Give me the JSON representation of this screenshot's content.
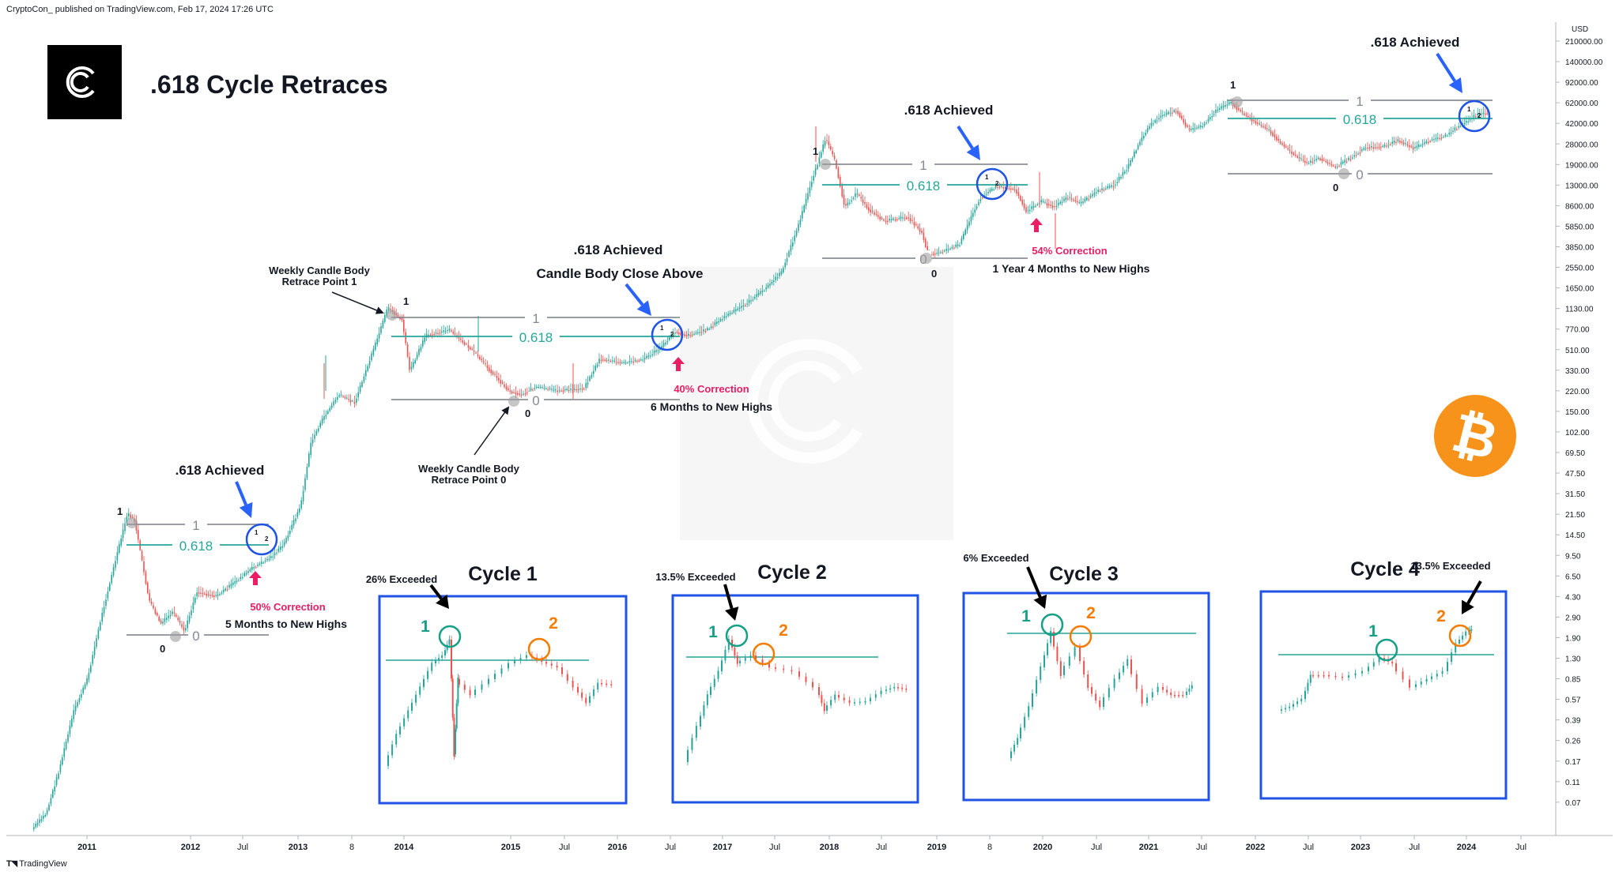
{
  "header": {
    "published_line": "CryptoCon_ published on TradingView.com, Feb 17, 2024 17:26 UTC"
  },
  "footer": {
    "brand": "TradingView",
    "brand_icon": "tradingview-logo-icon"
  },
  "title": ".618 Cycle Retraces",
  "brand": {
    "logo_icon": "cryptocon-logo-icon",
    "bitcoin_icon": "bitcoin-icon",
    "bitcoin_color": "#F7931A"
  },
  "colors": {
    "up_candle": "#26A69A",
    "down_candle": "#EF5350",
    "fib_line": "#26A69A",
    "fib_label": "#26A69A",
    "level_line": "#787B86",
    "circle_blue": "#1E53E5",
    "arrow_blue": "#2962FF",
    "correction_red": "#E91E63",
    "cycle_box": "#1E53E5",
    "circle_teal": "#16A085",
    "circle_orange": "#F57C00"
  },
  "chart_data": {
    "type": "candlestick",
    "title": ".618 Cycle Retraces",
    "y_axis": {
      "unit": "USD",
      "scale": "log",
      "ticks": [
        "210000.00",
        "140000.00",
        "92000.00",
        "62000.00",
        "42000.00",
        "28000.00",
        "19000.00",
        "13000.00",
        "8600.00",
        "5850.00",
        "3850.00",
        "2550.00",
        "1650.00",
        "1130.00",
        "770.00",
        "510.00",
        "330.00",
        "220.00",
        "150.00",
        "102.00",
        "69.50",
        "47.50",
        "31.50",
        "21.50",
        "14.50",
        "9.50",
        "6.50",
        "4.30",
        "2.90",
        "1.90",
        "1.30",
        "0.85",
        "0.57",
        "0.39",
        "0.26",
        "0.17",
        "0.11",
        "0.07"
      ]
    },
    "x_axis": {
      "ticks": [
        {
          "label": "2011",
          "bold": true
        },
        {
          "label": "2012",
          "bold": true
        },
        {
          "label": "Jul",
          "bold": false
        },
        {
          "label": "2013",
          "bold": true
        },
        {
          "label": "8",
          "bold": false
        },
        {
          "label": "2014",
          "bold": true
        },
        {
          "label": "2015",
          "bold": true
        },
        {
          "label": "Jul",
          "bold": false
        },
        {
          "label": "2016",
          "bold": true
        },
        {
          "label": "Jul",
          "bold": false
        },
        {
          "label": "2017",
          "bold": true
        },
        {
          "label": "Jul",
          "bold": false
        },
        {
          "label": "2018",
          "bold": true
        },
        {
          "label": "Jul",
          "bold": false
        },
        {
          "label": "2019",
          "bold": true
        },
        {
          "label": "8",
          "bold": false
        },
        {
          "label": "2020",
          "bold": true
        },
        {
          "label": "Jul",
          "bold": false
        },
        {
          "label": "2021",
          "bold": true
        },
        {
          "label": "Jul",
          "bold": false
        },
        {
          "label": "2022",
          "bold": true
        },
        {
          "label": "Jul",
          "bold": false
        },
        {
          "label": "2023",
          "bold": true
        },
        {
          "label": "Jul",
          "bold": false
        },
        {
          "label": "2024",
          "bold": true
        },
        {
          "label": "Jul",
          "bold": false
        }
      ]
    },
    "fib_levels": [
      {
        "cycle": "2011",
        "top_label": "1",
        "mid_label": "0.618",
        "bottom_label": "0",
        "pivot_top": "1",
        "pivot_bottom": "0"
      },
      {
        "cycle": "2013",
        "top_label": "1",
        "mid_label": "0.618",
        "bottom_label": "0",
        "pivot_top": "1",
        "pivot_bottom": "0"
      },
      {
        "cycle": "2017",
        "top_label": "1",
        "mid_label": "0.618",
        "bottom_label": "0",
        "pivot_top": "1",
        "pivot_bottom": "0"
      },
      {
        "cycle": "2021",
        "top_label": "1",
        "mid_label": "0.618",
        "bottom_label": "0",
        "pivot_top": "1",
        "pivot_bottom": "0"
      }
    ],
    "circle_labels": [
      "1",
      "2"
    ],
    "annotations": {
      "achieved": ".618 Achieved",
      "candle_close": "Candle Body Close Above",
      "retrace_point_1_line1": "Weekly Candle Body",
      "retrace_point_1_line2": "Retrace Point 1",
      "retrace_point_0_line1": "Weekly Candle Body",
      "retrace_point_0_line2": "Retrace Point 0",
      "corrections": [
        {
          "pct": "50% Correction",
          "time": "5 Months to New Highs"
        },
        {
          "pct": "40% Correction",
          "time": "6 Months to New Highs"
        },
        {
          "pct": "54% Correction",
          "time": "1 Year 4 Months to New Highs"
        }
      ]
    },
    "insets": [
      {
        "title": "Cycle 1",
        "exceeded": "26% Exceeded",
        "point1": "1",
        "point2": "2"
      },
      {
        "title": "Cycle 2",
        "exceeded": "13.5% Exceeded",
        "point1": "1",
        "point2": "2"
      },
      {
        "title": "Cycle 3",
        "exceeded": "6% Exceeded",
        "point1": "1",
        "point2": "2"
      },
      {
        "title": "Cycle 4",
        "exceeded": "13.5% Exceeded",
        "point1": "1",
        "point2": "2"
      }
    ]
  }
}
